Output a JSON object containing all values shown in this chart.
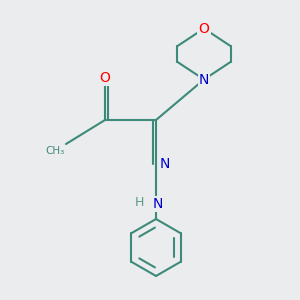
{
  "bg_color": "#eaecee",
  "bond_color": "#3d8a7a",
  "bond_width": 1.5,
  "atom_colors": {
    "O": "#ff0000",
    "N": "#0000cc",
    "C": "#3d8a7a",
    "H": "#5a9a8a"
  },
  "fig_size": [
    3.0,
    3.0
  ],
  "dpi": 100
}
